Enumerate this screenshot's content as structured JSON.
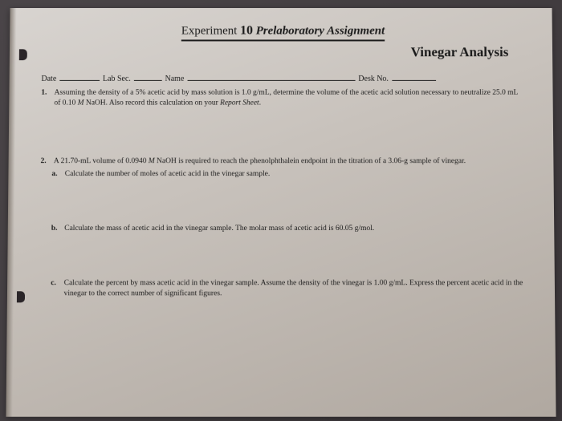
{
  "title": {
    "prefix": "Experiment ",
    "number": "10",
    "suffix": " Prelaboratory Assignment"
  },
  "subtitle": "Vinegar Analysis",
  "header": {
    "date": "Date",
    "labsec": "Lab Sec.",
    "name": "Name",
    "desk": "Desk No."
  },
  "q1": {
    "num": "1.",
    "text_a": "Assuming the density of a 5% acetic acid by mass solution is 1.0 g/mL, determine the volume of the acetic acid solution necessary to neutralize 25.0 mL of 0.10 ",
    "M": "M",
    "text_b": " NaOH. Also record this calculation on your ",
    "report": "Report Sheet",
    "text_c": "."
  },
  "q2": {
    "num": "2.",
    "text_a": "A 21.70-mL volume of 0.0940 ",
    "M": "M",
    "text_b": " NaOH is required to reach the phenolphthalein endpoint in the titration of a 3.06-g sample of vinegar.",
    "a": {
      "letter": "a.",
      "text": "Calculate the number of moles of acetic acid in the vinegar sample."
    },
    "b": {
      "letter": "b.",
      "text": "Calculate the mass of acetic acid in the vinegar sample. The molar mass of acetic acid is 60.05 g/mol."
    },
    "c": {
      "letter": "c.",
      "text": "Calculate the percent by mass acetic acid in the vinegar sample. Assume the density of the vinegar is 1.00 g/mL. Express the percent acetic acid in the vinegar to the correct number of significant figures."
    }
  }
}
